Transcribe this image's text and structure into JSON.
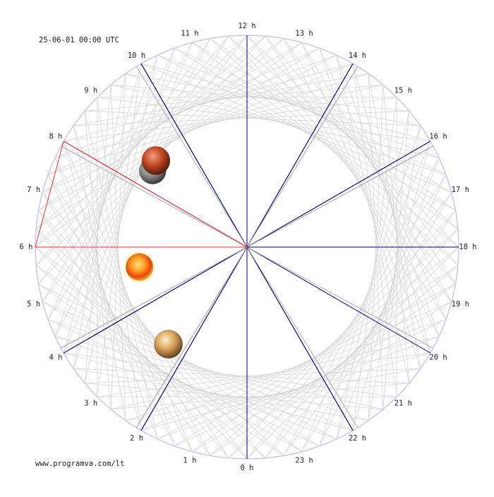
{
  "header": {
    "timestamp": "25-06-01 00:00 UTC"
  },
  "footer": {
    "site": "www.programva.com/lt"
  },
  "dial": {
    "hour_labels": [
      "0 h",
      "1 h",
      "2 h",
      "3 h",
      "4 h",
      "5 h",
      "6 h",
      "7 h",
      "8 h",
      "9 h",
      "10 h",
      "11 h",
      "12 h",
      "13 h",
      "14 h",
      "15 h",
      "16 h",
      "17 h",
      "18 h",
      "19 h",
      "20 h",
      "21 h",
      "22 h",
      "23 h"
    ],
    "colors": {
      "outer_ring": "#c8c8ee",
      "web": "#d6d6d6",
      "hour_axis": "#000066",
      "highlight": "#e53333",
      "label": "#1a1a40"
    },
    "bodies": [
      {
        "name": "sun-body",
        "hour": 5.3
      },
      {
        "name": "moon-body",
        "hour": 8.6
      },
      {
        "name": "mars-body",
        "hour": 8.9
      },
      {
        "name": "venus-body",
        "hour": 2.6
      }
    ]
  }
}
